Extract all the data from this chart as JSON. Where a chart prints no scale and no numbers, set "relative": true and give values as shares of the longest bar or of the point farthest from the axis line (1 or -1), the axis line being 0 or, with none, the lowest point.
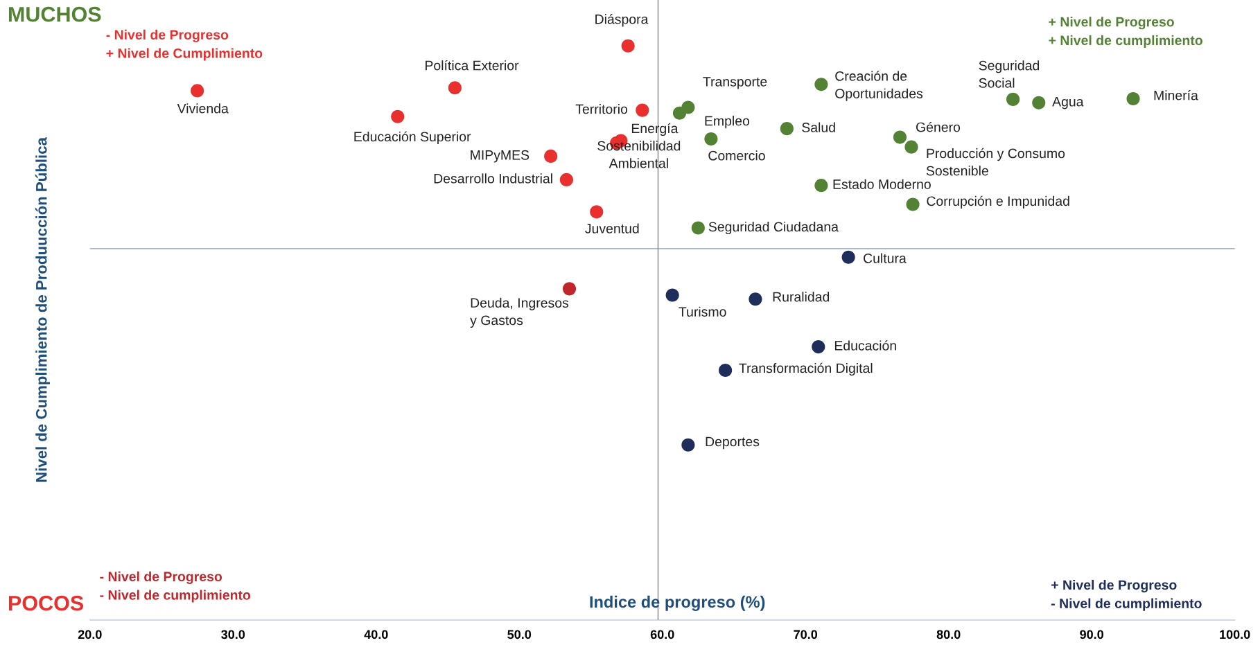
{
  "chart_data": {
    "type": "scatter",
    "relative": true,
    "marker": "circle",
    "xlabel": "Indice de progreso (%)",
    "ylabel": "Nivel de Cumplimiento de Produucción Pública",
    "xlim": [
      20,
      100
    ],
    "xticks": [
      {
        "value": 20,
        "label": "20.0"
      },
      {
        "value": 30,
        "label": "30.0"
      },
      {
        "value": 40,
        "label": "40.0"
      },
      {
        "value": 50,
        "label": "50.0"
      },
      {
        "value": 60,
        "label": "60.0"
      },
      {
        "value": 70,
        "label": "70.0"
      },
      {
        "value": 80,
        "label": "80.0"
      },
      {
        "value": 90,
        "label": "90.0"
      },
      {
        "value": 100,
        "label": "100.0"
      }
    ],
    "x": [
      27.5,
      45.5,
      41.5,
      57.6,
      58.6,
      57.1,
      56.8,
      52.2,
      53.3,
      55.4,
      53.5,
      61.8,
      61.2,
      63.4,
      68.7,
      71.1,
      84.5,
      86.3,
      92.9,
      76.6,
      77.4,
      71.1,
      77.5,
      62.5,
      73.0,
      60.7,
      66.5,
      70.9,
      64.4,
      61.8
    ],
    "values": [
      0.922,
      0.927,
      0.877,
      1.0,
      0.888,
      0.835,
      0.831,
      0.808,
      0.767,
      0.711,
      0.577,
      0.893,
      0.883,
      0.838,
      0.856,
      0.933,
      0.907,
      0.901,
      0.908,
      0.841,
      0.824,
      0.757,
      0.724,
      0.683,
      0.632,
      0.566,
      0.559,
      0.476,
      0.435,
      0.305
    ],
    "colors": [
      "#e8302e",
      "#e8302e",
      "#e8302e",
      "#e8302e",
      "#e8302e",
      "#e8302e",
      "#e8302e",
      "#e8302e",
      "#e8302e",
      "#e8302e",
      "#c0272d",
      "#548235",
      "#548235",
      "#548235",
      "#548235",
      "#548235",
      "#548235",
      "#548235",
      "#548235",
      "#548235",
      "#548235",
      "#548235",
      "#548235",
      "#548235",
      "#1f2d5a",
      "#1f2d5a",
      "#1f2d5a",
      "#1f2d5a",
      "#1f2d5a",
      "#1f2d5a"
    ],
    "ref_lines": [
      {
        "axis": "y",
        "value": 0.647,
        "color": "#a8b4c8"
      },
      {
        "axis": "x",
        "value": 59.7,
        "color": "#999999"
      }
    ],
    "annotations": [
      {
        "text": "Vivienda",
        "x": 27.5,
        "y": 0.922
      },
      {
        "text": "Política Exterior",
        "x": 45.5,
        "y": 0.927
      },
      {
        "text": "Educación Superior",
        "x": 41.5,
        "y": 0.877
      },
      {
        "text": "Diáspora",
        "x": 57.6,
        "y": 1.0
      },
      {
        "text": "Territorio",
        "x": 58.6,
        "y": 0.888
      },
      {
        "text": "Energía",
        "x": 57.1,
        "y": 0.835
      },
      {
        "text": "Sostenibilidad\nAmbiental",
        "x": 56.8,
        "y": 0.831
      },
      {
        "text": "MIPyMES",
        "x": 52.2,
        "y": 0.808
      },
      {
        "text": "Desarrollo Industrial",
        "x": 53.3,
        "y": 0.767
      },
      {
        "text": "Juventud",
        "x": 55.4,
        "y": 0.711
      },
      {
        "text": "Deuda, Ingresos\ny Gastos",
        "x": 53.5,
        "y": 0.577
      },
      {
        "text": "Transporte",
        "x": 61.8,
        "y": 0.893
      },
      {
        "text": "Empleo",
        "x": 61.2,
        "y": 0.883
      },
      {
        "text": "Comercio",
        "x": 63.4,
        "y": 0.838
      },
      {
        "text": "Salud",
        "x": 68.7,
        "y": 0.856
      },
      {
        "text": "Creación de\nOportunidades",
        "x": 71.1,
        "y": 0.933
      },
      {
        "text": "Seguridad\nSocial",
        "x": 84.5,
        "y": 0.907
      },
      {
        "text": "Agua",
        "x": 86.3,
        "y": 0.901
      },
      {
        "text": "Minería",
        "x": 92.9,
        "y": 0.908
      },
      {
        "text": "Género",
        "x": 76.6,
        "y": 0.841
      },
      {
        "text": "Producción y Consumo\nSostenible",
        "x": 77.4,
        "y": 0.824
      },
      {
        "text": "Estado Moderno",
        "x": 71.1,
        "y": 0.757
      },
      {
        "text": "Corrupción e Impunidad",
        "x": 77.5,
        "y": 0.724
      },
      {
        "text": "Seguridad Ciudadana",
        "x": 62.5,
        "y": 0.683
      },
      {
        "text": "Cultura",
        "x": 73.0,
        "y": 0.632
      },
      {
        "text": "Turismo",
        "x": 60.7,
        "y": 0.566
      },
      {
        "text": "Ruralidad",
        "x": 66.5,
        "y": 0.559
      },
      {
        "text": "Educación",
        "x": 70.9,
        "y": 0.476
      },
      {
        "text": "Transformación Digital",
        "x": 64.4,
        "y": 0.435
      },
      {
        "text": "Deportes",
        "x": 61.8,
        "y": 0.305
      },
      "MUCHOS",
      "- Nivel de Progreso\n+ Nivel de Cumplimiento",
      "+ Nivel de Progreso\n+ Nivel de cumplimiento",
      "POCOS",
      "- Nivel de Progreso\n- Nivel de cumplimiento",
      "+ Nivel de Progreso\n- Nivel de cumplimiento"
    ]
  }
}
